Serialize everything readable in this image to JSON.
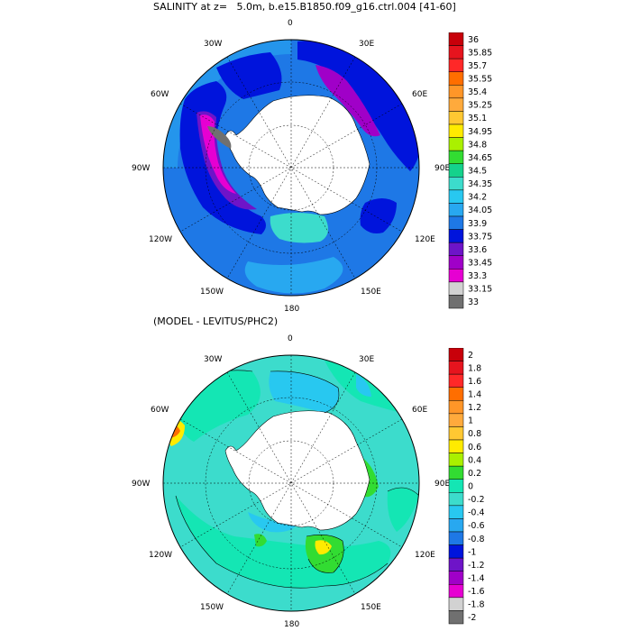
{
  "top_panel": {
    "title": "SALINITY at z=   5.0m, b.e15.B1850.f09_g16.ctrl.004 [41-60]",
    "lon_labels": {
      "n": "0",
      "n_e": "30E",
      "e_n": "60E",
      "e": "90E",
      "e_s": "120E",
      "s_e": "150E",
      "s": "180",
      "s_w": "150W",
      "w_s": "120W",
      "w": "90W",
      "w_n": "60W",
      "n_w": "30W"
    },
    "colorbar": {
      "labels": [
        "36",
        "35.85",
        "35.7",
        "35.55",
        "35.4",
        "35.25",
        "35.1",
        "34.95",
        "34.8",
        "34.65",
        "34.5",
        "34.35",
        "34.2",
        "34.05",
        "33.9",
        "33.75",
        "33.6",
        "33.45",
        "33.3",
        "33.15",
        "33"
      ],
      "colors": [
        "#c8000a",
        "#e6141e",
        "#ff2828",
        "#ff6e00",
        "#ff9628",
        "#ffaa3c",
        "#ffc832",
        "#ffeb00",
        "#aaf000",
        "#32dc32",
        "#14d28c",
        "#3cdccc",
        "#28c8f0",
        "#28a8f0",
        "#1e78e6",
        "#0014dc",
        "#6e14c8",
        "#a000c8",
        "#e600d2",
        "#d2d2d2",
        "#707070"
      ]
    }
  },
  "bottom_panel": {
    "title": "(MODEL - LEVITUS/PHC2)",
    "lon_labels": {
      "n": "0",
      "n_e": "30E",
      "e_n": "60E",
      "e": "90E",
      "e_s": "120E",
      "s_e": "150E",
      "s": "180",
      "s_w": "150W",
      "w_s": "120W",
      "w": "90W",
      "w_n": "60W",
      "n_w": "30W"
    },
    "colorbar": {
      "labels": [
        "2",
        "1.8",
        "1.6",
        "1.4",
        "1.2",
        "1",
        "0.8",
        "0.6",
        "0.4",
        "0.2",
        "0",
        "-0.2",
        "-0.4",
        "-0.6",
        "-0.8",
        "-1",
        "-1.2",
        "-1.4",
        "-1.6",
        "-1.8",
        "-2"
      ],
      "colors": [
        "#c8000a",
        "#e6141e",
        "#ff2828",
        "#ff6e00",
        "#ff9628",
        "#ffaa3c",
        "#ffc832",
        "#ffeb00",
        "#aaf000",
        "#32dc32",
        "#14e6b4",
        "#3cdccc",
        "#28c8f0",
        "#28a8f0",
        "#1e78e6",
        "#0014dc",
        "#6e14c8",
        "#a000c8",
        "#e600d2",
        "#d2d2d2",
        "#707070"
      ]
    }
  }
}
